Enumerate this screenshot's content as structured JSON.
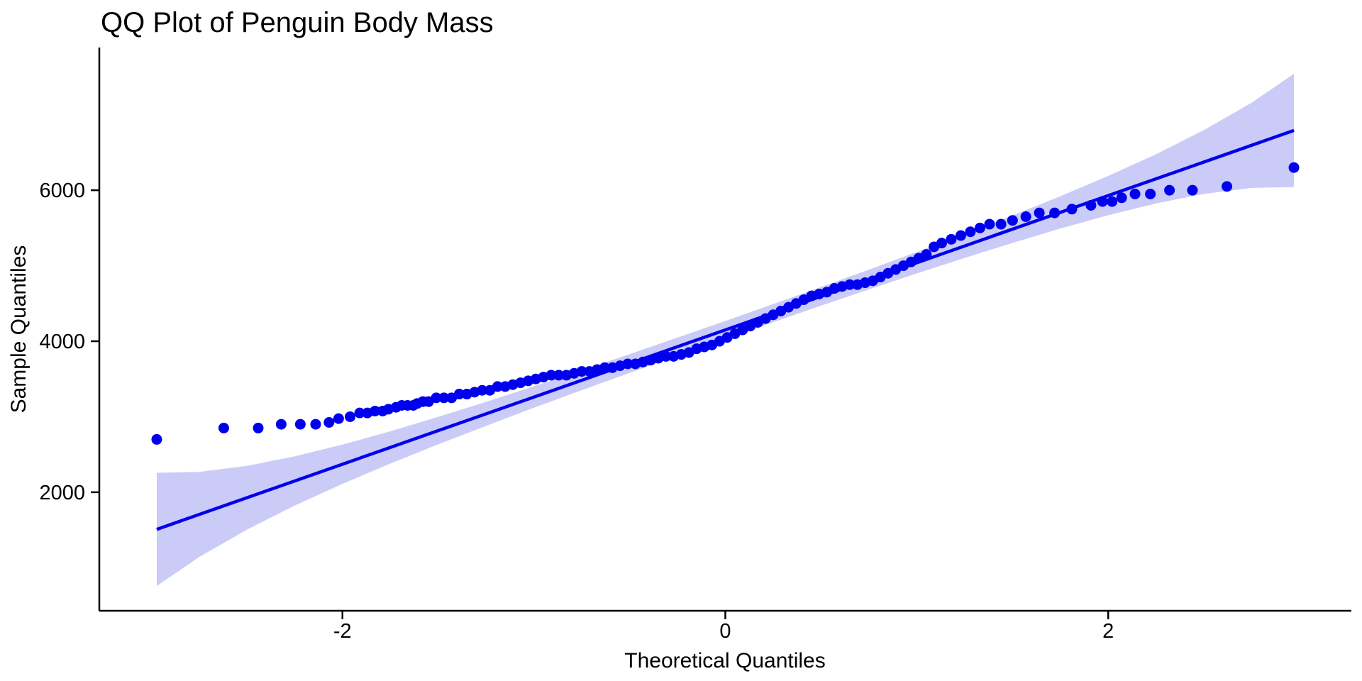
{
  "page": {
    "background": "#FFFFFF"
  },
  "chart_data": {
    "type": "scatter",
    "subtype": "qq-plot",
    "title": "QQ Plot of Penguin Body Mass",
    "xlabel": "Theoretical Quantiles",
    "ylabel": "Sample Quantiles",
    "xlim": [
      -3.27,
      3.27
    ],
    "ylim": [
      430,
      7890
    ],
    "x_ticks": [
      -2,
      0,
      2
    ],
    "x_tick_labels": [
      "-2",
      "0",
      "2"
    ],
    "y_ticks": [
      2000,
      4000,
      6000
    ],
    "y_tick_labels": [
      "2000",
      "4000",
      "6000"
    ],
    "grid": false,
    "legend": false,
    "colors": {
      "point": "#0000EE",
      "line": "#0000EE",
      "band": "#CBCBF7",
      "axis": "#000000",
      "text": "#000000"
    },
    "reference_line": {
      "intercept": 4150,
      "slope": 889.5,
      "x_start": -2.97,
      "x_end": 2.97
    },
    "confidence_band": {
      "level": 0.95,
      "q": [
        -2.97,
        -2.75,
        -2.5,
        -2.25,
        -2.0,
        -1.75,
        -1.5,
        -1.25,
        -1.0,
        -0.75,
        -0.5,
        -0.25,
        0.0,
        0.25,
        0.5,
        0.75,
        1.0,
        1.25,
        1.5,
        1.75,
        2.0,
        2.25,
        2.5,
        2.75,
        2.97
      ],
      "lower": [
        758,
        1139,
        1503,
        1823,
        2111,
        2379,
        2634,
        2879,
        3119,
        3352,
        3581,
        3808,
        4032,
        4252,
        4471,
        4686,
        4898,
        5103,
        5302,
        5493,
        5669,
        5825,
        5951,
        6031,
        6042
      ],
      "upper": [
        2258,
        2269,
        2349,
        2475,
        2631,
        2807,
        2998,
        3197,
        3403,
        3614,
        3829,
        4048,
        4268,
        4492,
        4719,
        4948,
        5182,
        5421,
        5666,
        5921,
        6189,
        6477,
        6797,
        7161,
        7542
      ]
    },
    "points": [
      [
        -2.97,
        2700
      ],
      [
        -2.62,
        2850
      ],
      [
        -2.44,
        2850
      ],
      [
        -2.32,
        2900
      ],
      [
        -2.22,
        2900
      ],
      [
        -2.14,
        2900
      ],
      [
        -2.07,
        2925
      ],
      [
        -2.02,
        2975
      ],
      [
        -1.96,
        3000
      ],
      [
        -1.91,
        3050
      ],
      [
        -1.87,
        3050
      ],
      [
        -1.83,
        3075
      ],
      [
        -1.79,
        3075
      ],
      [
        -1.76,
        3100
      ],
      [
        -1.72,
        3125
      ],
      [
        -1.69,
        3150
      ],
      [
        -1.66,
        3150
      ],
      [
        -1.63,
        3150
      ],
      [
        -1.61,
        3175
      ],
      [
        -1.58,
        3200
      ],
      [
        -1.55,
        3200
      ],
      [
        -1.51,
        3250
      ],
      [
        -1.47,
        3250
      ],
      [
        -1.43,
        3250
      ],
      [
        -1.39,
        3300
      ],
      [
        -1.35,
        3300
      ],
      [
        -1.31,
        3325
      ],
      [
        -1.27,
        3350
      ],
      [
        -1.23,
        3350
      ],
      [
        -1.19,
        3400
      ],
      [
        -1.15,
        3400
      ],
      [
        -1.11,
        3425
      ],
      [
        -1.07,
        3450
      ],
      [
        -1.03,
        3475
      ],
      [
        -0.99,
        3500
      ],
      [
        -0.95,
        3525
      ],
      [
        -0.91,
        3550
      ],
      [
        -0.87,
        3550
      ],
      [
        -0.83,
        3550
      ],
      [
        -0.79,
        3575
      ],
      [
        -0.75,
        3600
      ],
      [
        -0.71,
        3600
      ],
      [
        -0.67,
        3625
      ],
      [
        -0.63,
        3650
      ],
      [
        -0.59,
        3650
      ],
      [
        -0.55,
        3675
      ],
      [
        -0.51,
        3700
      ],
      [
        -0.47,
        3700
      ],
      [
        -0.43,
        3725
      ],
      [
        -0.39,
        3750
      ],
      [
        -0.35,
        3775
      ],
      [
        -0.31,
        3800
      ],
      [
        -0.27,
        3800
      ],
      [
        -0.23,
        3825
      ],
      [
        -0.19,
        3850
      ],
      [
        -0.15,
        3900
      ],
      [
        -0.11,
        3925
      ],
      [
        -0.07,
        3950
      ],
      [
        -0.03,
        4000
      ],
      [
        0.01,
        4050
      ],
      [
        0.05,
        4100
      ],
      [
        0.09,
        4150
      ],
      [
        0.13,
        4200
      ],
      [
        0.17,
        4250
      ],
      [
        0.21,
        4300
      ],
      [
        0.25,
        4350
      ],
      [
        0.29,
        4400
      ],
      [
        0.33,
        4450
      ],
      [
        0.37,
        4500
      ],
      [
        0.41,
        4550
      ],
      [
        0.45,
        4600
      ],
      [
        0.49,
        4625
      ],
      [
        0.53,
        4650
      ],
      [
        0.57,
        4700
      ],
      [
        0.61,
        4725
      ],
      [
        0.65,
        4750
      ],
      [
        0.69,
        4750
      ],
      [
        0.73,
        4775
      ],
      [
        0.77,
        4800
      ],
      [
        0.81,
        4850
      ],
      [
        0.85,
        4900
      ],
      [
        0.89,
        4950
      ],
      [
        0.93,
        5000
      ],
      [
        0.97,
        5050
      ],
      [
        1.01,
        5100
      ],
      [
        1.05,
        5150
      ],
      [
        1.09,
        5250
      ],
      [
        1.13,
        5300
      ],
      [
        1.18,
        5350
      ],
      [
        1.23,
        5400
      ],
      [
        1.28,
        5450
      ],
      [
        1.33,
        5500
      ],
      [
        1.38,
        5550
      ],
      [
        1.44,
        5550
      ],
      [
        1.5,
        5600
      ],
      [
        1.57,
        5650
      ],
      [
        1.64,
        5700
      ],
      [
        1.72,
        5700
      ],
      [
        1.81,
        5750
      ],
      [
        1.91,
        5800
      ],
      [
        1.97,
        5850
      ],
      [
        2.02,
        5850
      ],
      [
        2.07,
        5900
      ],
      [
        2.14,
        5950
      ],
      [
        2.22,
        5950
      ],
      [
        2.32,
        6000
      ],
      [
        2.44,
        6000
      ],
      [
        2.62,
        6050
      ],
      [
        2.97,
        6300
      ]
    ]
  }
}
